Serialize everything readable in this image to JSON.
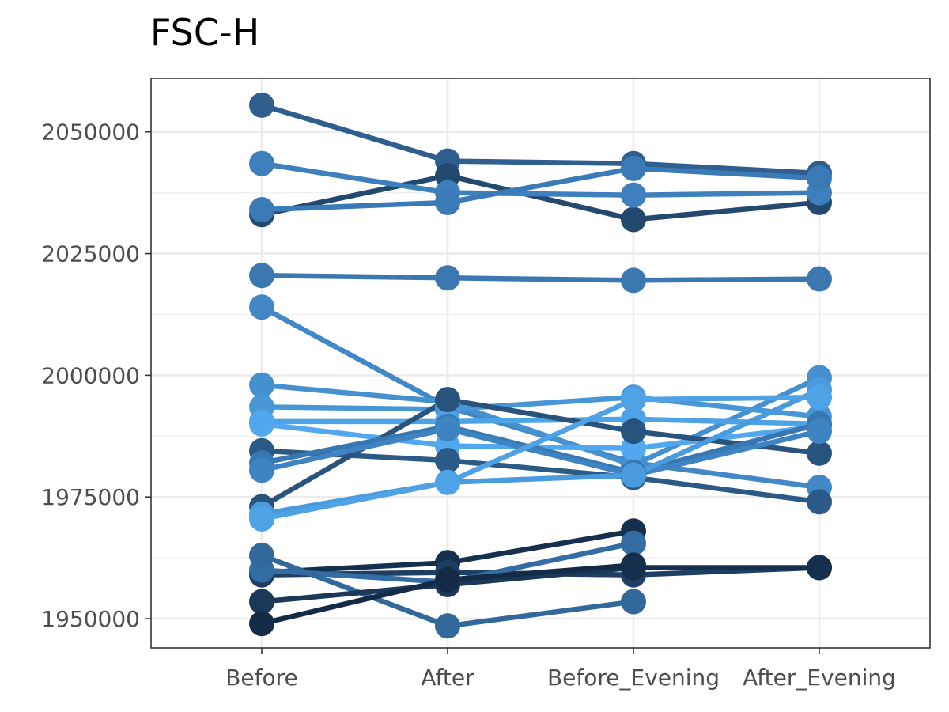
{
  "chart_data": {
    "type": "line",
    "title": "FSC-H",
    "xlabel": "",
    "ylabel": "",
    "categories": [
      "Before",
      "After",
      "Before_Evening",
      "After_Evening"
    ],
    "ylim": [
      1944000,
      2061000
    ],
    "yticks": [
      1950000,
      1975000,
      2000000,
      2025000,
      2050000
    ],
    "y_tick_labels": [
      "1950000",
      "1975000",
      "2000000",
      "2025000",
      "2050000"
    ],
    "grid": true,
    "legend": "none",
    "series": [
      {
        "color": "#2f5f8f",
        "values": [
          2055500,
          2044000,
          2043500,
          2041500
        ]
      },
      {
        "color": "#23496f",
        "values": [
          2033000,
          2041000,
          2032000,
          2035500
        ]
      },
      {
        "color": "#3d80bd",
        "values": [
          2043500,
          2037500,
          2037000,
          2037500
        ]
      },
      {
        "color": "#3a7ab6",
        "values": [
          2034000,
          2035500,
          2042500,
          2040500
        ]
      },
      {
        "color": "#3b78b0",
        "values": [
          2020500,
          2020000,
          2019500,
          2019800
        ]
      },
      {
        "color": "#4288c6",
        "values": [
          2014000,
          1993500,
          1982000,
          1977000
        ]
      },
      {
        "color": "#4590cf",
        "values": [
          1998000,
          1994500,
          1981500,
          1999500
        ]
      },
      {
        "color": "#4896d6",
        "values": [
          1993500,
          1993000,
          1995500,
          1991500
        ]
      },
      {
        "color": "#4ea3e6",
        "values": [
          1990500,
          1990500,
          1991000,
          1990000
        ]
      },
      {
        "color": "#52a8ef",
        "values": [
          1990000,
          1985500,
          1985000,
          1989500
        ]
      },
      {
        "color": "#2b5a87",
        "values": [
          1984500,
          1982500,
          1979000,
          1974000
        ]
      },
      {
        "color": "#28537d",
        "values": [
          1973000,
          1995000,
          1988500,
          1984000
        ]
      },
      {
        "color": "#3878b2",
        "values": [
          1982000,
          1989500,
          1980000,
          1990000
        ]
      },
      {
        "color": "#3f84c2",
        "values": [
          1980500,
          1989000,
          1979500,
          1988500
        ]
      },
      {
        "color": "#4a9ade",
        "values": [
          1971500,
          1978000,
          1979500,
          1997000
        ]
      },
      {
        "color": "#4fa2e6",
        "values": [
          1970500,
          1978000,
          1995000,
          1995500
        ]
      },
      {
        "color": "#15304e",
        "values": [
          1959500,
          1961500,
          1968000,
          null
        ]
      },
      {
        "color": "#1e3f63",
        "values": [
          1959000,
          1959500,
          1959000,
          1960500
        ]
      },
      {
        "color": "#346da3",
        "values": [
          1960000,
          1957500,
          1965500,
          null
        ]
      },
      {
        "color": "#33689b",
        "values": [
          1963000,
          1948500,
          1953500,
          null
        ]
      },
      {
        "color": "#1a3858",
        "values": [
          1953500,
          1957000,
          1960500,
          null
        ]
      },
      {
        "color": "#132b47",
        "values": [
          1949000,
          1958000,
          1961000,
          null
        ]
      },
      {
        "color": "#162f4d",
        "values": [
          null,
          null,
          1960500,
          1960500
        ]
      }
    ]
  }
}
